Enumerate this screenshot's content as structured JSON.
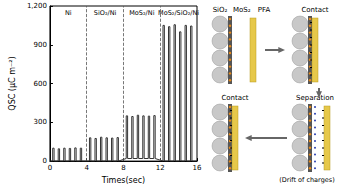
{
  "chart_data": {
    "type": "line",
    "x_label": "Times(sec)",
    "y_label": "QSC (μC m⁻²)",
    "xlim": [
      0,
      16
    ],
    "xticks": [
      0,
      4,
      8,
      12,
      16
    ],
    "ylim": [
      0,
      1200
    ],
    "yticks": [
      0,
      300,
      600,
      900,
      1200
    ],
    "grid": false,
    "color": "#333333",
    "regions": [
      {
        "label": "Ni",
        "start": 0,
        "end": 4
      },
      {
        "label": "SiO₂/Ni",
        "start": 4,
        "end": 8
      },
      {
        "label": "MoS₂/Ni",
        "start": 8,
        "end": 12
      },
      {
        "label": "MoS₂/SiO₂/Ni",
        "start": 12,
        "end": 16
      }
    ],
    "x": [
      0,
      0.3,
      0.3,
      0.45,
      0.45,
      0.9,
      0.9,
      1.05,
      1.05,
      1.5,
      1.5,
      1.65,
      1.65,
      2.1,
      2.1,
      2.25,
      2.25,
      2.7,
      2.7,
      2.85,
      2.85,
      3.3,
      3.3,
      3.45,
      3.45,
      4.3,
      4.3,
      4.45,
      4.45,
      4.9,
      4.9,
      5.05,
      5.05,
      5.5,
      5.5,
      5.65,
      5.65,
      6.1,
      6.1,
      6.25,
      6.25,
      6.7,
      6.7,
      6.85,
      6.85,
      7.3,
      7.3,
      7.45,
      7.45,
      8.3,
      8.3,
      8.45,
      8.45,
      8.9,
      8.9,
      9.05,
      9.05,
      9.5,
      9.5,
      9.65,
      9.65,
      10.1,
      10.1,
      10.25,
      10.25,
      10.7,
      10.7,
      10.85,
      10.85,
      11.3,
      11.3,
      11.45,
      11.45,
      12.3,
      12.3,
      12.45,
      12.45,
      12.9,
      12.9,
      13.05,
      13.05,
      13.5,
      13.5,
      13.65,
      13.65,
      14.1,
      14.1,
      14.25,
      14.25,
      14.7,
      14.7,
      14.85,
      14.85,
      15.3,
      15.3,
      15.45,
      15.45,
      16
    ],
    "values": [
      0,
      0,
      100,
      100,
      0,
      0,
      95,
      95,
      0,
      0,
      100,
      100,
      0,
      0,
      98,
      98,
      0,
      0,
      102,
      102,
      0,
      0,
      100,
      100,
      0,
      0,
      180,
      180,
      0,
      0,
      175,
      175,
      0,
      0,
      185,
      185,
      0,
      0,
      180,
      180,
      0,
      0,
      178,
      178,
      0,
      0,
      182,
      182,
      0,
      20,
      350,
      350,
      20,
      20,
      345,
      345,
      20,
      20,
      355,
      355,
      20,
      20,
      350,
      350,
      20,
      20,
      348,
      348,
      20,
      20,
      352,
      352,
      20,
      0,
      1050,
      1050,
      0,
      0,
      1040,
      1040,
      0,
      0,
      1055,
      1055,
      0,
      0,
      1000,
      1000,
      0,
      0,
      1050,
      1050,
      0,
      0,
      1045,
      1045,
      0,
      0
    ]
  },
  "diagram": {
    "layer_labels": [
      "SiO₂",
      "MoS₂",
      "PFA"
    ],
    "panels": [
      {
        "label": "Contact"
      },
      {
        "label": "Separation",
        "sublabel": "(Drift of charges)"
      },
      {
        "label": "Contact"
      }
    ]
  }
}
